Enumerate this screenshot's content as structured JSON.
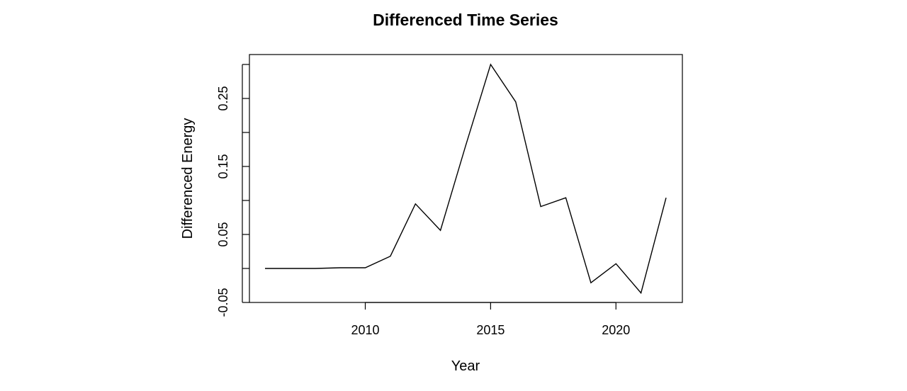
{
  "chart_data": {
    "type": "line",
    "title": "Differenced Time Series",
    "xlabel": "Year",
    "ylabel": "Differenced Energy",
    "x": [
      2006,
      2007,
      2008,
      2009,
      2010,
      2011,
      2012,
      2013,
      2014,
      2015,
      2016,
      2017,
      2018,
      2019,
      2020,
      2021,
      2022
    ],
    "series": [
      {
        "values": [
          0.0,
          0.0,
          0.0,
          0.001,
          0.001,
          0.018,
          0.095,
          0.056,
          0.18,
          0.3,
          0.245,
          0.091,
          0.104,
          -0.021,
          0.007,
          -0.036,
          0.104
        ]
      }
    ],
    "xlim": [
      2006,
      2022
    ],
    "ylim": [
      -0.05,
      0.3
    ],
    "xticks": [
      2010,
      2015,
      2020
    ],
    "yticks": [
      -0.05,
      0.0,
      0.05,
      0.1,
      0.15,
      0.2,
      0.25,
      0.3
    ],
    "ytick_labels": [
      "-0.05",
      "",
      "0.05",
      "",
      "0.15",
      "",
      "0.25",
      ""
    ],
    "grid": false,
    "legend": "none"
  }
}
